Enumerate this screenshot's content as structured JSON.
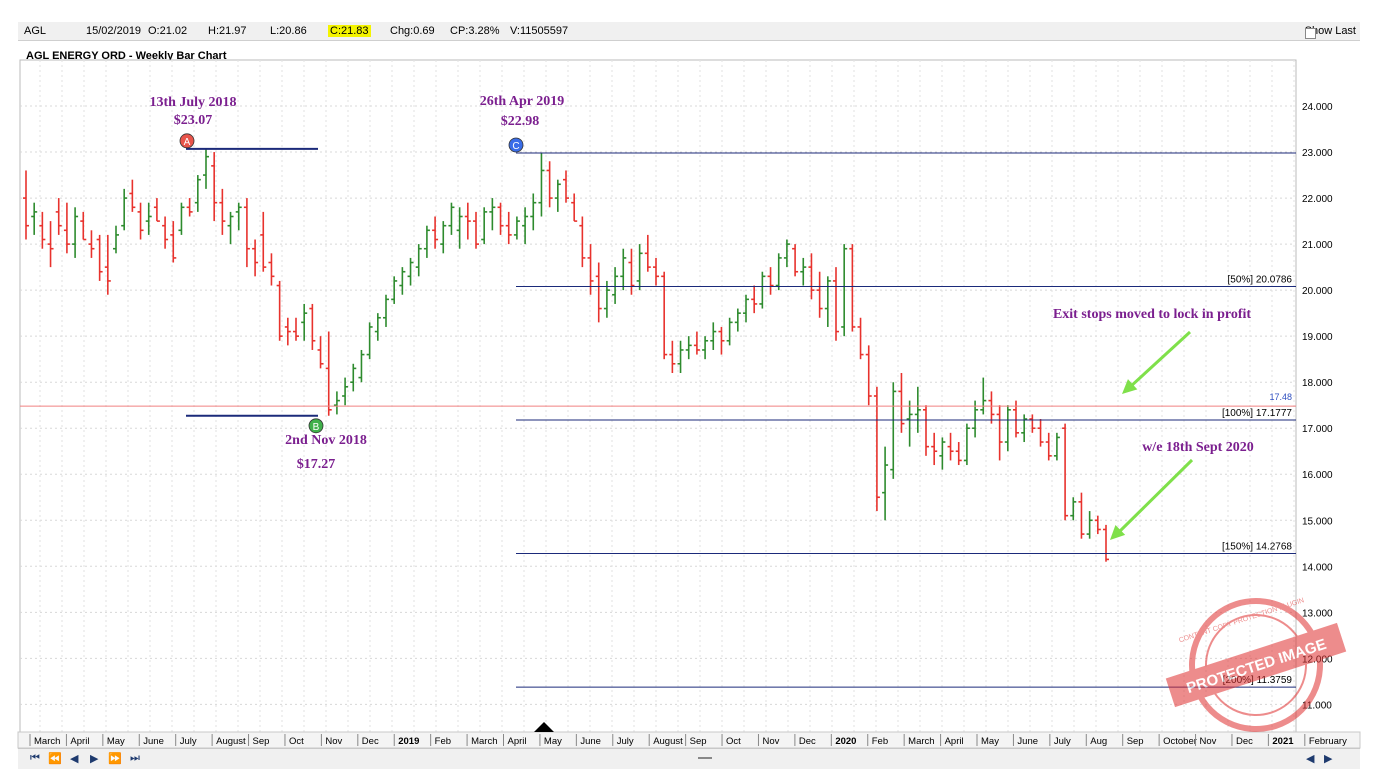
{
  "header": {
    "symbol": "AGL",
    "date": "15/02/2019",
    "open": "O:21.02",
    "high": "H:21.97",
    "low": "L:20.86",
    "close": "C:21.83",
    "change": "Chg:0.69",
    "change_pct": "CP:3.28%",
    "volume": "V:11505597",
    "show_last": "Show Last"
  },
  "chart_title": "AGL ENERGY ORD - Weekly Bar Chart",
  "colors": {
    "up": "#2e8b2e",
    "down": "#e8322d",
    "neutral": "#000000",
    "fib": "#1b2a7a",
    "annotation": "#7b1f8f",
    "current": "#f08080",
    "arrow": "#7fe04a"
  },
  "chart_data": {
    "type": "bar",
    "ylim": [
      10.4,
      25.0
    ],
    "yticks": [
      "11.000",
      "12.000",
      "13.000",
      "14.000",
      "15.000",
      "16.000",
      "17.000",
      "18.000",
      "19.000",
      "20.000",
      "21.000",
      "22.000",
      "23.000",
      "24.000"
    ],
    "xlabels": [
      "March",
      "April",
      "May",
      "June",
      "July",
      "August",
      "Sep",
      "Oct",
      "Nov",
      "Dec",
      "2019",
      "Feb",
      "March",
      "April",
      "May",
      "June",
      "July",
      "August",
      "Sep",
      "Oct",
      "Nov",
      "Dec",
      "2020",
      "Feb",
      "March",
      "April",
      "May",
      "June",
      "July",
      "Aug",
      "Sep",
      "October",
      "Nov",
      "Dec",
      "2021",
      "February"
    ],
    "ohlc": [
      [
        22.0,
        22.6,
        21.1,
        21.4
      ],
      [
        21.6,
        21.9,
        21.2,
        21.7
      ],
      [
        21.4,
        21.7,
        20.9,
        21.1
      ],
      [
        21.0,
        21.5,
        20.5,
        20.9
      ],
      [
        21.7,
        22.0,
        21.2,
        21.4
      ],
      [
        21.3,
        21.9,
        20.8,
        21.0
      ],
      [
        21.0,
        21.8,
        20.7,
        21.6
      ],
      [
        21.5,
        21.7,
        21.1,
        21.1
      ],
      [
        21.0,
        21.3,
        20.7,
        20.9
      ],
      [
        21.1,
        21.2,
        20.2,
        20.4
      ],
      [
        20.5,
        21.2,
        19.9,
        20.2
      ],
      [
        20.9,
        21.4,
        20.8,
        21.2
      ],
      [
        21.4,
        22.2,
        21.3,
        22.0
      ],
      [
        22.1,
        22.4,
        21.7,
        21.8
      ],
      [
        21.7,
        21.9,
        21.1,
        21.3
      ],
      [
        21.5,
        21.9,
        21.2,
        21.6
      ],
      [
        21.8,
        22.0,
        21.5,
        21.5
      ],
      [
        21.4,
        21.6,
        20.9,
        21.1
      ],
      [
        21.2,
        21.5,
        20.6,
        20.7
      ],
      [
        21.3,
        21.9,
        21.2,
        21.8
      ],
      [
        21.8,
        22.0,
        21.6,
        21.7
      ],
      [
        21.9,
        22.5,
        21.7,
        22.4
      ],
      [
        22.5,
        23.07,
        22.2,
        22.9
      ],
      [
        22.7,
        23.0,
        21.5,
        21.9
      ],
      [
        21.9,
        22.2,
        21.2,
        21.5
      ],
      [
        21.4,
        21.7,
        21.0,
        21.6
      ],
      [
        21.7,
        21.9,
        21.3,
        21.8
      ],
      [
        21.8,
        22.0,
        20.5,
        20.9
      ],
      [
        20.9,
        21.1,
        20.3,
        20.6
      ],
      [
        21.2,
        21.7,
        20.4,
        20.5
      ],
      [
        20.6,
        20.8,
        20.1,
        20.3
      ],
      [
        20.1,
        20.2,
        18.9,
        19.0
      ],
      [
        19.2,
        19.4,
        18.8,
        19.1
      ],
      [
        19.1,
        19.4,
        18.9,
        19.0
      ],
      [
        19.3,
        19.7,
        18.9,
        19.5
      ],
      [
        19.6,
        19.7,
        18.7,
        18.9
      ],
      [
        18.7,
        19.0,
        18.3,
        18.4
      ],
      [
        18.3,
        19.1,
        17.27,
        17.4
      ],
      [
        17.5,
        17.8,
        17.3,
        17.6
      ],
      [
        17.7,
        18.1,
        17.5,
        17.9
      ],
      [
        18.0,
        18.4,
        17.8,
        18.3
      ],
      [
        18.1,
        18.7,
        18.0,
        18.6
      ],
      [
        18.6,
        19.3,
        18.5,
        19.2
      ],
      [
        19.1,
        19.5,
        18.9,
        19.4
      ],
      [
        19.4,
        19.9,
        19.2,
        19.8
      ],
      [
        19.8,
        20.3,
        19.7,
        20.2
      ],
      [
        20.1,
        20.5,
        19.9,
        20.4
      ],
      [
        20.3,
        20.7,
        20.1,
        20.6
      ],
      [
        20.5,
        21.0,
        20.3,
        20.9
      ],
      [
        20.9,
        21.4,
        20.7,
        21.3
      ],
      [
        21.3,
        21.6,
        20.9,
        21.1
      ],
      [
        21.0,
        21.5,
        20.8,
        21.4
      ],
      [
        21.4,
        21.9,
        21.2,
        21.8
      ],
      [
        21.3,
        21.8,
        20.9,
        21.6
      ],
      [
        21.6,
        21.9,
        21.1,
        21.5
      ],
      [
        21.5,
        21.7,
        20.9,
        21.0
      ],
      [
        21.1,
        21.8,
        21.0,
        21.7
      ],
      [
        21.7,
        22.0,
        21.3,
        21.8
      ],
      [
        21.8,
        21.9,
        21.2,
        21.4
      ],
      [
        21.4,
        21.7,
        21.0,
        21.2
      ],
      [
        21.2,
        21.6,
        21.1,
        21.5
      ],
      [
        21.4,
        21.8,
        21.0,
        21.6
      ],
      [
        21.6,
        22.1,
        21.3,
        21.9
      ],
      [
        21.9,
        22.98,
        21.6,
        22.6
      ],
      [
        22.6,
        22.8,
        21.8,
        22.0
      ],
      [
        22.0,
        22.4,
        21.7,
        22.3
      ],
      [
        22.4,
        22.6,
        21.9,
        22.0
      ],
      [
        21.9,
        22.1,
        21.5,
        21.5
      ],
      [
        21.4,
        21.6,
        20.5,
        20.7
      ],
      [
        20.7,
        21.0,
        19.9,
        20.2
      ],
      [
        20.3,
        20.6,
        19.3,
        19.6
      ],
      [
        19.6,
        20.2,
        19.4,
        20.0
      ],
      [
        19.9,
        20.5,
        19.7,
        20.3
      ],
      [
        20.3,
        20.9,
        20.0,
        20.7
      ],
      [
        20.6,
        20.9,
        19.9,
        20.1
      ],
      [
        20.2,
        21.0,
        20.0,
        20.8
      ],
      [
        20.8,
        21.2,
        20.4,
        20.5
      ],
      [
        20.5,
        20.7,
        20.1,
        20.3
      ],
      [
        20.3,
        20.4,
        18.5,
        18.6
      ],
      [
        18.6,
        18.9,
        18.2,
        18.4
      ],
      [
        18.4,
        18.9,
        18.2,
        18.7
      ],
      [
        18.7,
        19.0,
        18.5,
        18.8
      ],
      [
        18.8,
        19.1,
        18.6,
        18.7
      ],
      [
        18.7,
        19.0,
        18.5,
        18.9
      ],
      [
        18.9,
        19.3,
        18.7,
        19.1
      ],
      [
        19.1,
        19.2,
        18.6,
        18.9
      ],
      [
        18.9,
        19.4,
        18.8,
        19.3
      ],
      [
        19.3,
        19.6,
        19.1,
        19.5
      ],
      [
        19.5,
        19.9,
        19.3,
        19.8
      ],
      [
        19.8,
        20.1,
        19.5,
        19.7
      ],
      [
        19.7,
        20.4,
        19.6,
        20.3
      ],
      [
        20.3,
        20.5,
        19.9,
        20.1
      ],
      [
        20.1,
        20.8,
        20.0,
        20.7
      ],
      [
        20.7,
        21.1,
        20.5,
        21.0
      ],
      [
        20.9,
        21.0,
        20.3,
        20.4
      ],
      [
        20.4,
        20.7,
        20.1,
        20.5
      ],
      [
        20.5,
        20.8,
        19.8,
        20.0
      ],
      [
        20.0,
        20.4,
        19.4,
        19.6
      ],
      [
        19.6,
        20.3,
        19.2,
        20.2
      ],
      [
        20.2,
        20.5,
        18.9,
        19.1
      ],
      [
        19.2,
        21.0,
        19.0,
        20.9
      ],
      [
        20.9,
        21.0,
        19.1,
        19.2
      ],
      [
        19.2,
        19.4,
        18.5,
        18.6
      ],
      [
        18.6,
        18.8,
        17.5,
        17.7
      ],
      [
        17.7,
        17.9,
        15.2,
        15.5
      ],
      [
        15.6,
        16.6,
        15.0,
        16.2
      ],
      [
        16.1,
        18.0,
        15.9,
        17.8
      ],
      [
        17.8,
        18.2,
        16.9,
        17.1
      ],
      [
        17.2,
        17.6,
        16.6,
        17.3
      ],
      [
        17.3,
        17.9,
        16.9,
        17.4
      ],
      [
        17.4,
        17.5,
        16.4,
        16.6
      ],
      [
        16.6,
        16.9,
        16.2,
        16.5
      ],
      [
        16.4,
        16.8,
        16.1,
        16.7
      ],
      [
        16.6,
        16.9,
        16.3,
        16.5
      ],
      [
        16.5,
        16.7,
        16.2,
        16.3
      ],
      [
        16.3,
        17.1,
        16.2,
        17.0
      ],
      [
        17.0,
        17.6,
        16.8,
        17.4
      ],
      [
        17.4,
        18.1,
        17.3,
        17.6
      ],
      [
        17.6,
        17.8,
        17.1,
        17.3
      ],
      [
        17.3,
        17.5,
        16.3,
        16.7
      ],
      [
        16.7,
        17.5,
        16.5,
        17.4
      ],
      [
        17.4,
        17.6,
        16.8,
        16.9
      ],
      [
        16.9,
        17.3,
        16.7,
        17.2
      ],
      [
        17.2,
        17.3,
        16.9,
        17.0
      ],
      [
        17.0,
        17.2,
        16.6,
        16.7
      ],
      [
        16.7,
        16.9,
        16.3,
        16.4
      ],
      [
        16.4,
        16.9,
        16.3,
        16.8
      ],
      [
        17.0,
        17.1,
        15.0,
        15.1
      ],
      [
        15.1,
        15.5,
        15.0,
        15.4
      ],
      [
        15.4,
        15.6,
        14.6,
        14.7
      ],
      [
        14.7,
        15.2,
        14.6,
        15.0
      ],
      [
        15.0,
        15.1,
        14.7,
        14.8
      ],
      [
        14.8,
        14.9,
        14.1,
        14.15
      ]
    ],
    "levels": [
      {
        "value": 23.07,
        "kind": "high"
      },
      {
        "value": 17.27,
        "kind": "low"
      },
      {
        "value": 22.98,
        "kind": "retest"
      },
      {
        "value": 20.0786,
        "label": "[50%] 20.0786"
      },
      {
        "value": 17.1777,
        "label": "[100%] 17.1777"
      },
      {
        "value": 14.2768,
        "label": "[150%] 14.2768"
      },
      {
        "value": 11.3759,
        "label": "[200%] 11.3759"
      }
    ],
    "current_line": {
      "value": 17.48,
      "label": "17.48"
    },
    "annotations": [
      {
        "text": "13th July 2018",
        "value": "$23.07",
        "marker": "A"
      },
      {
        "text": "2nd Nov 2018",
        "value": "$17.27",
        "marker": "B"
      },
      {
        "text": "26th Apr 2019",
        "value": "$22.98",
        "marker": "C"
      },
      {
        "text": "Exit stops moved to lock in profit"
      },
      {
        "text": "w/e 18th Sept 2020"
      }
    ]
  },
  "watermark": {
    "lines": [
      "CONTENT COPY PROTECTION PLUGIN",
      "PROTECTED IMAGE"
    ]
  }
}
